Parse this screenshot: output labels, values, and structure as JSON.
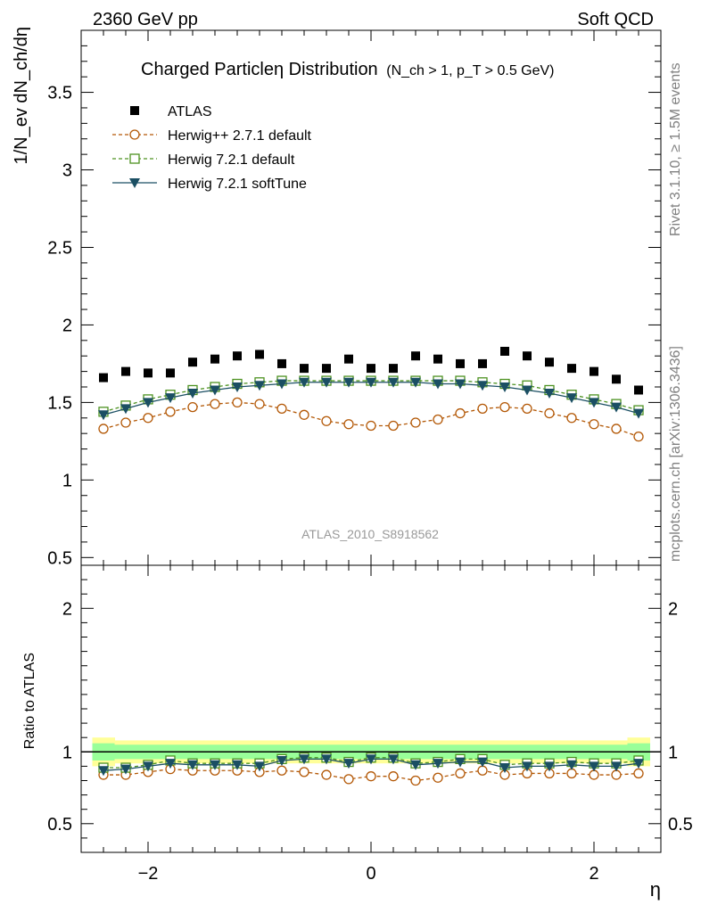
{
  "header": {
    "left": "2360 GeV pp",
    "right": "Soft QCD"
  },
  "side_labels": {
    "rivet": "Rivet 3.1.10, ≥ 1.5M events",
    "mcplots": "mcplots.cern.ch [arXiv:1306.3436]"
  },
  "chart_data": {
    "type": "scatter",
    "title_main": "Charged Particleη Distribution",
    "title_sub": "(N_ch > 1, p_T > 0.5 GeV)",
    "analysis_label": "ATLAS_2010_S8918562",
    "xlabel": "η",
    "ylabel": "1/N_ev dN_ch/dη",
    "ratio_ylabel": "Ratio to ATLAS",
    "xlim": [
      -2.6,
      2.6
    ],
    "ylim": [
      0.45,
      3.9
    ],
    "ratio_ylim": [
      0.3,
      2.3
    ],
    "x_ticks": [
      -2,
      0,
      2
    ],
    "x_tick_labels": [
      "−2",
      "0",
      "2"
    ],
    "y_ticks": [
      0.5,
      1,
      1.5,
      2,
      2.5,
      3,
      3.5
    ],
    "y_tick_labels": [
      "0.5",
      "1",
      "1.5",
      "2",
      "2.5",
      "3",
      "3.5"
    ],
    "ratio_ticks": [
      0.5,
      1,
      2
    ],
    "ratio_tick_labels": [
      "0.5",
      "1",
      "2"
    ],
    "legend_position": "top-left",
    "x": [
      -2.4,
      -2.2,
      -2.0,
      -1.8,
      -1.6,
      -1.4,
      -1.2,
      -1.0,
      -0.8,
      -0.6,
      -0.4,
      -0.2,
      0.0,
      0.2,
      0.4,
      0.6,
      0.8,
      1.0,
      1.2,
      1.4,
      1.6,
      1.8,
      2.0,
      2.2,
      2.4
    ],
    "series": [
      {
        "name": "ATLAS",
        "style": "data",
        "color": "#000000",
        "values": [
          1.66,
          1.7,
          1.69,
          1.69,
          1.76,
          1.78,
          1.8,
          1.81,
          1.75,
          1.72,
          1.72,
          1.78,
          1.72,
          1.72,
          1.8,
          1.78,
          1.75,
          1.75,
          1.83,
          1.8,
          1.76,
          1.72,
          1.7,
          1.65,
          1.58
        ]
      },
      {
        "name": "Herwig++ 2.7.1 default",
        "style": "circle-dashed",
        "color": "#b35806",
        "values": [
          1.33,
          1.37,
          1.4,
          1.44,
          1.47,
          1.49,
          1.5,
          1.49,
          1.46,
          1.42,
          1.38,
          1.36,
          1.35,
          1.35,
          1.37,
          1.39,
          1.43,
          1.46,
          1.47,
          1.46,
          1.43,
          1.4,
          1.36,
          1.33,
          1.28
        ]
      },
      {
        "name": "Herwig 7.2.1 default",
        "style": "square-dashed",
        "color": "#4d9221",
        "values": [
          1.44,
          1.48,
          1.52,
          1.55,
          1.58,
          1.6,
          1.62,
          1.63,
          1.64,
          1.64,
          1.64,
          1.64,
          1.64,
          1.64,
          1.64,
          1.64,
          1.64,
          1.63,
          1.62,
          1.61,
          1.58,
          1.55,
          1.52,
          1.49,
          1.45
        ]
      },
      {
        "name": "Herwig 7.2.1 softTune",
        "style": "triangle-solid",
        "color": "#1b4f63",
        "values": [
          1.42,
          1.46,
          1.5,
          1.53,
          1.56,
          1.58,
          1.6,
          1.61,
          1.62,
          1.63,
          1.63,
          1.63,
          1.63,
          1.63,
          1.63,
          1.62,
          1.62,
          1.61,
          1.6,
          1.58,
          1.56,
          1.53,
          1.5,
          1.47,
          1.43
        ]
      }
    ],
    "ratio_series": [
      {
        "name": "Herwig++ 2.7.1 default",
        "values": [
          0.84,
          0.84,
          0.86,
          0.88,
          0.87,
          0.87,
          0.87,
          0.86,
          0.87,
          0.86,
          0.84,
          0.81,
          0.83,
          0.83,
          0.8,
          0.82,
          0.85,
          0.87,
          0.84,
          0.85,
          0.85,
          0.85,
          0.84,
          0.84,
          0.85
        ]
      },
      {
        "name": "Herwig 7.2.1 default",
        "values": [
          0.89,
          0.89,
          0.91,
          0.94,
          0.92,
          0.92,
          0.92,
          0.92,
          0.95,
          0.96,
          0.96,
          0.93,
          0.96,
          0.96,
          0.92,
          0.93,
          0.95,
          0.95,
          0.91,
          0.92,
          0.92,
          0.93,
          0.92,
          0.92,
          0.94
        ]
      },
      {
        "name": "Herwig 7.2.1 softTune",
        "values": [
          0.87,
          0.88,
          0.9,
          0.92,
          0.91,
          0.91,
          0.91,
          0.9,
          0.94,
          0.95,
          0.95,
          0.92,
          0.95,
          0.95,
          0.91,
          0.92,
          0.93,
          0.93,
          0.89,
          0.9,
          0.9,
          0.91,
          0.9,
          0.9,
          0.92
        ]
      }
    ],
    "ratio_band_inner": [
      0.06,
      0.05,
      0.05,
      0.05,
      0.05,
      0.05,
      0.05,
      0.05,
      0.05,
      0.05,
      0.05,
      0.05,
      0.05,
      0.05,
      0.05,
      0.05,
      0.05,
      0.05,
      0.05,
      0.05,
      0.05,
      0.05,
      0.05,
      0.05,
      0.06
    ],
    "ratio_band_outer": [
      0.1,
      0.08,
      0.08,
      0.08,
      0.08,
      0.08,
      0.08,
      0.08,
      0.08,
      0.08,
      0.08,
      0.08,
      0.08,
      0.08,
      0.08,
      0.08,
      0.08,
      0.08,
      0.08,
      0.08,
      0.08,
      0.08,
      0.08,
      0.08,
      0.1
    ],
    "colors": {
      "band_inner": "#99ff99",
      "band_outer": "#ffff99",
      "side_text": "#808080",
      "analysis_text": "#999999"
    }
  }
}
